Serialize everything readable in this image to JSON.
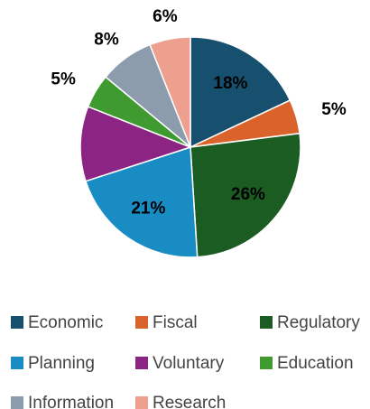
{
  "chart_data": {
    "type": "pie",
    "categories": [
      "Economic",
      "Fiscal",
      "Regulatory",
      "Planning",
      "Voluntary",
      "Education",
      "Information",
      "Research"
    ],
    "values": [
      18,
      5,
      26,
      21,
      11,
      5,
      8,
      6
    ],
    "value_labels": [
      "18%",
      "5%",
      "26%",
      "21%",
      null,
      "5%",
      "8%",
      "6%"
    ],
    "colors": [
      "#17506f",
      "#d9632a",
      "#1b5c22",
      "#1a8cc4",
      "#8c2484",
      "#3f9a2f",
      "#8c9cad",
      "#eca08d"
    ],
    "legend": "bottom"
  }
}
